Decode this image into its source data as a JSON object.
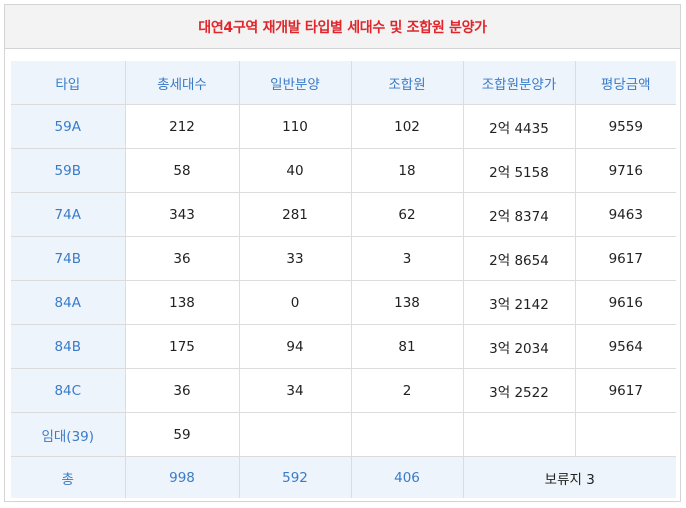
{
  "title": "대연4구역 재개발 타입별 세대수 및 조합원 분양가",
  "headers": [
    "타입",
    "총세대수",
    "일반분양",
    "조합원",
    "조합원분양가",
    "평당금액"
  ],
  "rows": [
    [
      "59A",
      "212",
      "110",
      "102",
      "2억 4435",
      "9559"
    ],
    [
      "59B",
      "58",
      "40",
      "18",
      "2억 5158",
      "9716"
    ],
    [
      "74A",
      "343",
      "281",
      "62",
      "2억 8374",
      "9463"
    ],
    [
      "74B",
      "36",
      "33",
      "3",
      "2억 8654",
      "9617"
    ],
    [
      "84A",
      "138",
      "0",
      "138",
      "3억 2142",
      "9616"
    ],
    [
      "84B",
      "175",
      "94",
      "81",
      "3억 2034",
      "9564"
    ],
    [
      "84C",
      "36",
      "34",
      "2",
      "3억 2522",
      "9617"
    ],
    [
      "임대(39)",
      "59",
      "",
      "",
      "",
      ""
    ]
  ],
  "total": {
    "label": "총",
    "total_units": "998",
    "general_sale": "592",
    "members": "406",
    "remainder": "보류지 3"
  },
  "colors": {
    "title": "#e0262b",
    "accent": "#3a7bc8",
    "header_bg": "#eef4fb"
  }
}
